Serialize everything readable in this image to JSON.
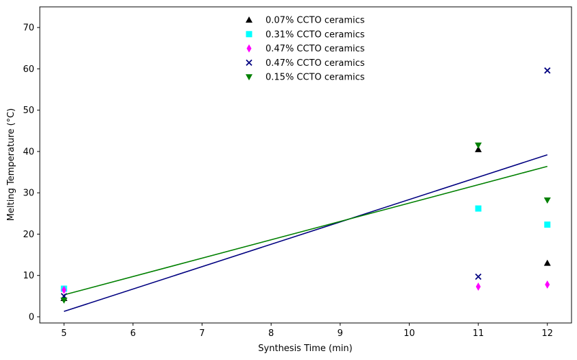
{
  "chart_data": {
    "type": "scatter",
    "title": "",
    "xlabel": "Synthesis Time (min)",
    "ylabel": "Melting Temperature (°C)",
    "xlim": [
      4.65,
      12.35
    ],
    "ylim": [
      -1.5,
      75
    ],
    "xticks": [
      5,
      6,
      7,
      8,
      9,
      10,
      11,
      12
    ],
    "yticks": [
      0,
      10,
      20,
      30,
      40,
      50,
      60,
      70
    ],
    "grid": false,
    "legend_position": "top-center",
    "series": [
      {
        "name": "0.07% CCTO ceramics",
        "marker": "triangle-up",
        "color": "#000000",
        "points": [
          [
            5,
            4.5
          ],
          [
            11,
            40.5
          ],
          [
            12,
            13.0
          ]
        ]
      },
      {
        "name": "0.31% CCTO ceramics",
        "marker": "square",
        "color": "#00ffff",
        "points": [
          [
            5,
            6.8
          ],
          [
            11,
            26.2
          ],
          [
            12,
            22.3
          ]
        ]
      },
      {
        "name": "0.47% CCTO ceramics",
        "marker": "thin-diamond",
        "color": "#ff00ff",
        "points": [
          [
            5,
            6.5
          ],
          [
            11,
            7.3
          ],
          [
            12,
            7.8
          ]
        ]
      },
      {
        "name": "0.47% CCTO ceramics",
        "marker": "x",
        "color": "#000080",
        "points": [
          [
            5,
            5.0
          ],
          [
            11,
            9.7
          ],
          [
            12,
            59.6
          ]
        ]
      },
      {
        "name": "0.15% CCTO ceramics",
        "marker": "triangle-down",
        "color": "#008000",
        "points": [
          [
            5,
            4.0
          ],
          [
            11,
            41.5
          ],
          [
            12,
            28.2
          ]
        ]
      }
    ],
    "fit_lines": [
      {
        "color": "#000080",
        "points": [
          [
            5,
            1.3
          ],
          [
            12,
            39.2
          ]
        ]
      },
      {
        "color": "#008000",
        "points": [
          [
            5,
            5.3
          ],
          [
            12,
            36.4
          ]
        ]
      }
    ]
  }
}
